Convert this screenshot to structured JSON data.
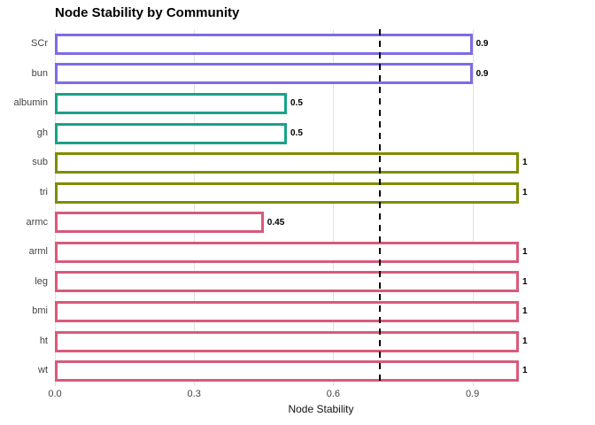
{
  "chart_data": {
    "type": "bar",
    "orientation": "horizontal",
    "title": "Node Stability by Community",
    "xlabel": "Node Stability",
    "ylabel": "",
    "xlim": [
      0,
      1.05
    ],
    "x_ticks": [
      {
        "value": 0.0,
        "label": "0.0"
      },
      {
        "value": 0.3,
        "label": "0.3"
      },
      {
        "value": 0.6,
        "label": "0.6"
      },
      {
        "value": 0.9,
        "label": "0.9"
      }
    ],
    "grid": "major-vertical-only",
    "gridline_color": "#e2e2e2",
    "legend": "none",
    "bar_fill": "#ffffff",
    "threshold_line": {
      "value": 0.7,
      "style": "dashed",
      "color": "#000000"
    },
    "axis_text_color": "#444444",
    "community_colors": {
      "community-1": "#7c6ce6",
      "community-2": "#1aa189",
      "community-3": "#808c00",
      "community-4": "#d85a7b"
    },
    "bars": [
      {
        "category": "SCr",
        "value": 0.9,
        "label": "0.9",
        "color": "#7c6ce6"
      },
      {
        "category": "bun",
        "value": 0.9,
        "label": "0.9",
        "color": "#7c6ce6"
      },
      {
        "category": "albumin",
        "value": 0.5,
        "label": "0.5",
        "color": "#1aa189"
      },
      {
        "category": "gh",
        "value": 0.5,
        "label": "0.5",
        "color": "#1aa189"
      },
      {
        "category": "sub",
        "value": 1,
        "label": "1",
        "color": "#808c00"
      },
      {
        "category": "tri",
        "value": 1,
        "label": "1",
        "color": "#808c00"
      },
      {
        "category": "armc",
        "value": 0.45,
        "label": "0.45",
        "color": "#d85a7b"
      },
      {
        "category": "arml",
        "value": 1,
        "label": "1",
        "color": "#d85a7b"
      },
      {
        "category": "leg",
        "value": 1,
        "label": "1",
        "color": "#d85a7b"
      },
      {
        "category": "bmi",
        "value": 1,
        "label": "1",
        "color": "#d85a7b"
      },
      {
        "category": "ht",
        "value": 1,
        "label": "1",
        "color": "#d85a7b"
      },
      {
        "category": "wt",
        "value": 1,
        "label": "1",
        "color": "#d85a7b"
      }
    ]
  }
}
